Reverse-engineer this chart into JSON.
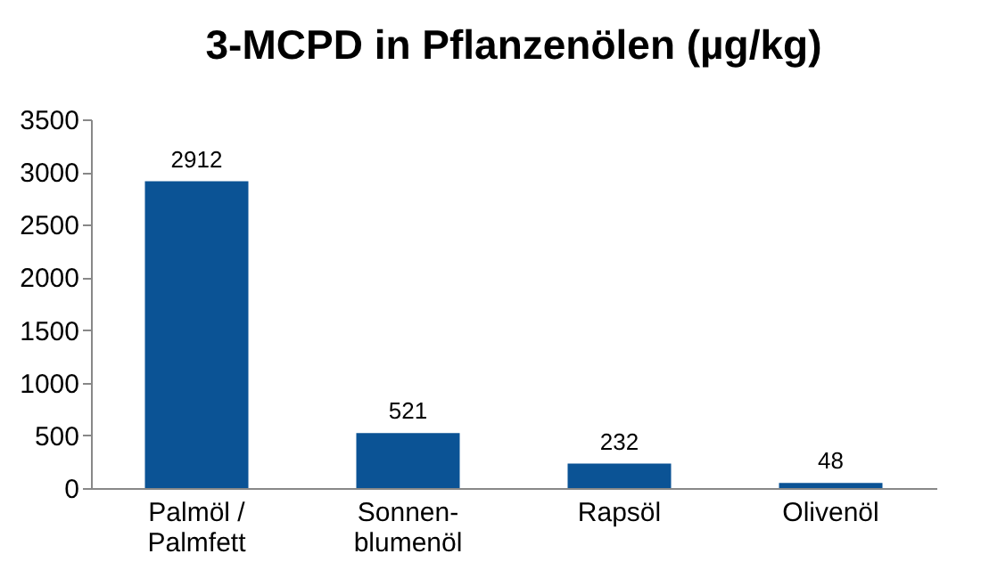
{
  "chart_data": {
    "type": "bar",
    "title": "3-MCPD in Pflanzenölen (µg/kg)",
    "categories": [
      "Palmöl /\nPalmfett",
      "Sonnen-\nblumenöl",
      "Rapsöl",
      "Olivenöl"
    ],
    "values": [
      2912,
      521,
      232,
      48
    ],
    "color": "#0b5395",
    "ylim": [
      0,
      3500
    ],
    "yticks": [
      0,
      500,
      1000,
      1500,
      2000,
      2500,
      3000,
      3500
    ],
    "grid": false,
    "data_labels": true
  }
}
